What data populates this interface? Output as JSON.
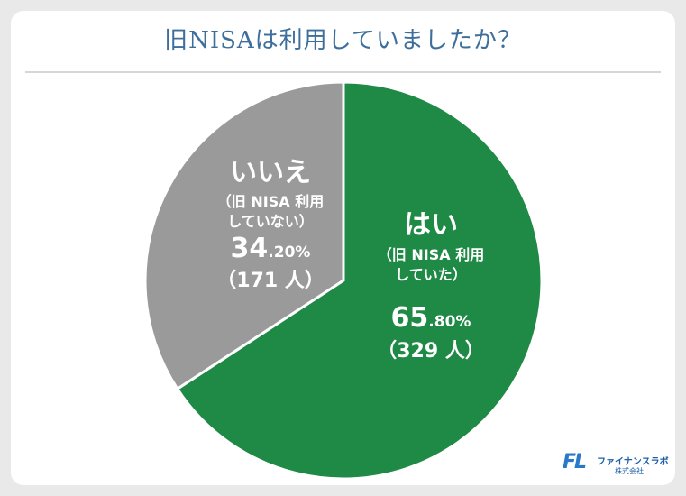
{
  "header": {
    "title": "旧NISAは利用していましたか？"
  },
  "chart_data": {
    "type": "pie",
    "title": "旧NISAは利用していましたか？",
    "slices": [
      {
        "label": "はい",
        "sublabel_line1": "（旧 NISA 利用",
        "sublabel_line2": "していた）",
        "value": 65.8,
        "percent_big": "65",
        "percent_small": ".80%",
        "count_text": "（329 人）",
        "color": "#1e8a45"
      },
      {
        "label": "いいえ",
        "sublabel_line1": "（旧 NISA 利用",
        "sublabel_line2": "していない）",
        "value": 34.2,
        "percent_big": "34",
        "percent_small": ".20%",
        "count_text": "（171 人）",
        "color": "#9a9a9a"
      }
    ]
  },
  "logo": {
    "mark": "FL",
    "name": "ファイナンスラボ",
    "company": "株式会社"
  }
}
